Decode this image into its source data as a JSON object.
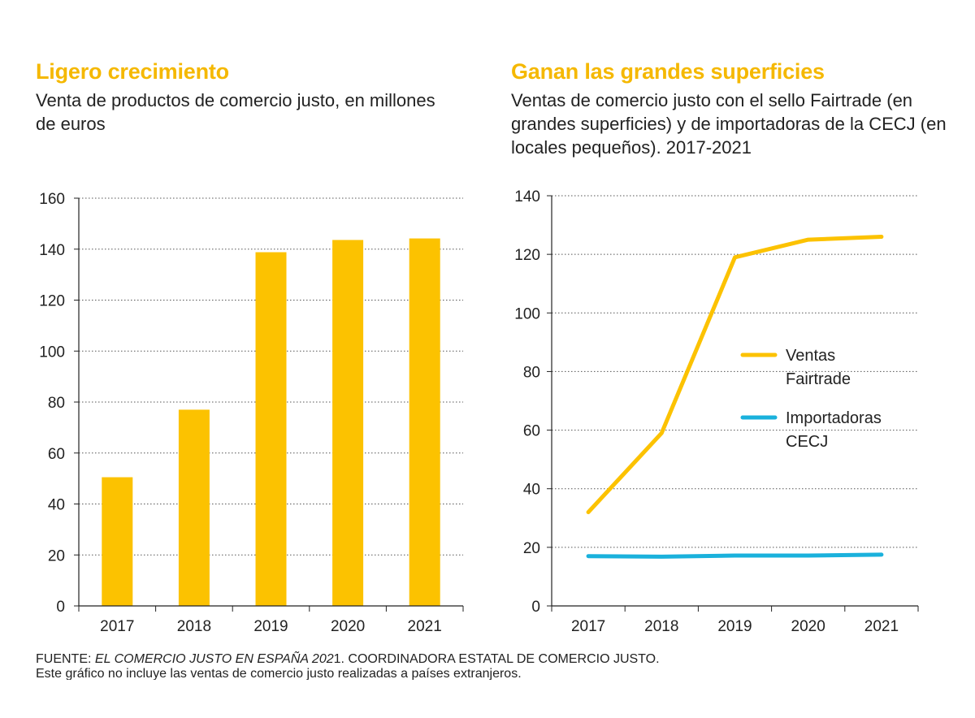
{
  "chart_data": [
    {
      "type": "bar",
      "title": "Ligero crecimiento",
      "subtitle": "Venta de productos de comercio justo, en millones de euros",
      "categories": [
        "2017",
        "2018",
        "2019",
        "2020",
        "2021"
      ],
      "values": [
        50.5,
        77,
        138.8,
        143.6,
        144.2
      ],
      "ylim": [
        0,
        160
      ],
      "yticks": [
        0,
        20,
        40,
        60,
        80,
        100,
        120,
        140,
        160
      ],
      "grid": true,
      "color": "#fcc200"
    },
    {
      "type": "line",
      "title": "Ganan las grandes superficies",
      "subtitle": "Ventas de comercio justo con el sello Fairtrade (en grandes superficies) y de importadoras de la CECJ (en locales pequeños). 2017-2021",
      "categories": [
        "2017",
        "2018",
        "2019",
        "2020",
        "2021"
      ],
      "series": [
        {
          "name": "Ventas Fairtrade",
          "legend_lines": [
            "Ventas",
            "Fairtrade"
          ],
          "values": [
            32,
            59,
            119,
            125,
            126
          ],
          "color": "#fcc200"
        },
        {
          "name": "Importadoras CECJ",
          "legend_lines": [
            "Importadoras",
            "CECJ"
          ],
          "values": [
            17,
            16.8,
            17.2,
            17.2,
            17.5
          ],
          "color": "#1ab1dc"
        }
      ],
      "ylim": [
        0,
        140
      ],
      "yticks": [
        0,
        20,
        40,
        60,
        80,
        100,
        120,
        140
      ],
      "grid": true,
      "legend_position": "center-right"
    }
  ],
  "footer": {
    "source_prefix": "FUENTE: ",
    "source_italic": "EL COMERCIO JUSTO EN ESPAÑA 202",
    "source_suffix": "1. COORDINADORA ESTATAL DE COMERCIO JUSTO.",
    "note": "Este gráfico no incluye las ventas de comercio justo realizadas a países extranjeros."
  }
}
